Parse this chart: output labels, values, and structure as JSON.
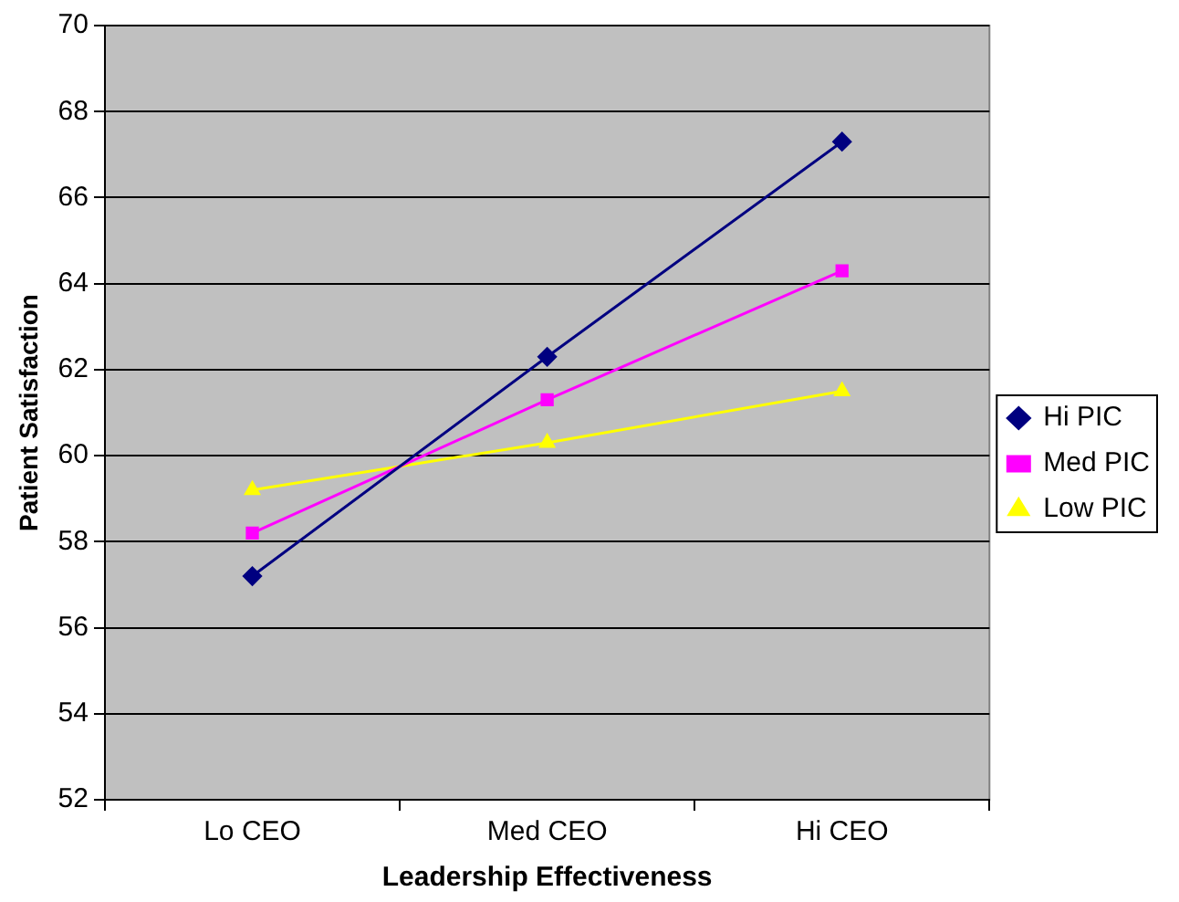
{
  "chart_data": {
    "type": "line",
    "xlabel": "Leadership Effectiveness",
    "ylabel": "Patient Satisfaction",
    "categories": [
      "Lo CEO",
      "Med CEO",
      "Hi CEO"
    ],
    "series": [
      {
        "name": "Hi PIC",
        "color": "#000080",
        "marker": "diamond",
        "values": [
          57.2,
          62.3,
          67.3
        ]
      },
      {
        "name": "Med PIC",
        "color": "#ff00ff",
        "marker": "square",
        "values": [
          58.2,
          61.3,
          64.3
        ]
      },
      {
        "name": "Low PIC",
        "color": "#ffff00",
        "marker": "triangle",
        "values": [
          59.2,
          60.3,
          61.5
        ]
      }
    ],
    "ylim": [
      52,
      70
    ],
    "yticks": [
      52,
      54,
      56,
      58,
      60,
      62,
      64,
      66,
      68,
      70
    ],
    "grid": "y",
    "legend": "right",
    "line_style": "solid"
  }
}
